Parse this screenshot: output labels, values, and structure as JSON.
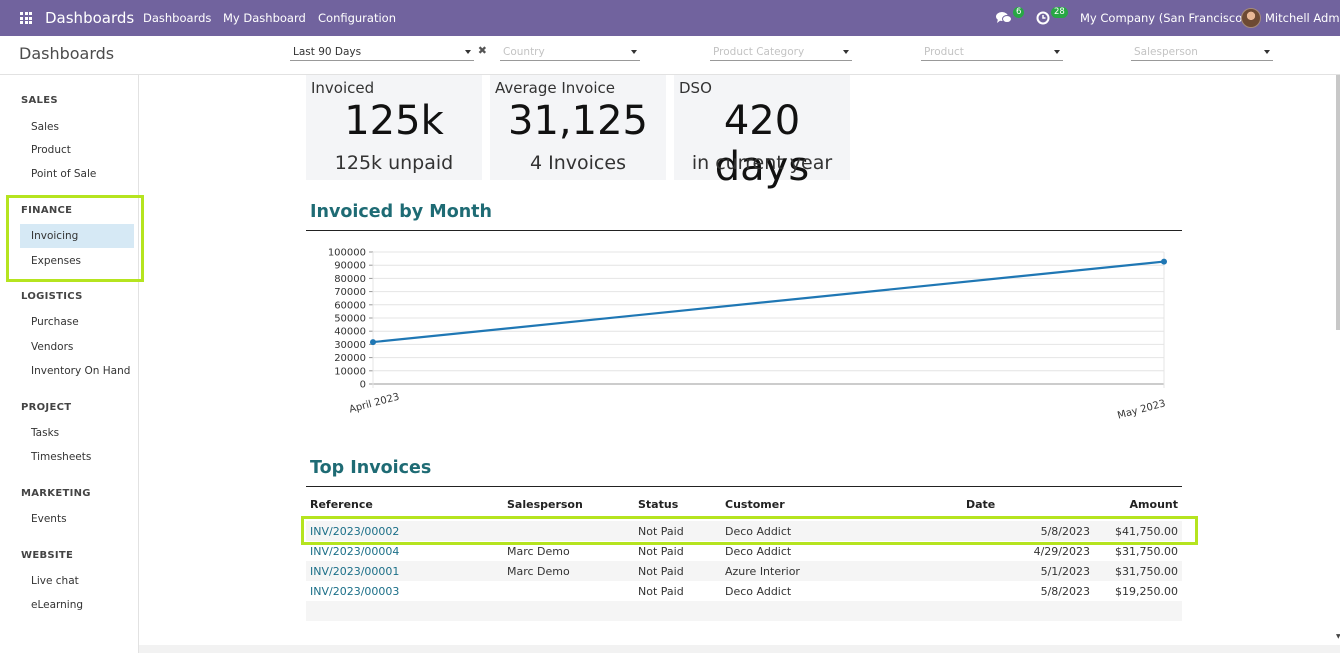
{
  "navbar": {
    "app_name": "Dashboards",
    "menu": [
      "Dashboards",
      "My Dashboard",
      "Configuration"
    ],
    "messages_count": "6",
    "activities_count": "28",
    "company": "My Company (San Francisco)",
    "user": "Mitchell Admin",
    "color": "#71639e"
  },
  "control": {
    "title": "Dashboards",
    "period": "Last 90 Days",
    "country_placeholder": "Country",
    "category_placeholder": "Product Category",
    "product_placeholder": "Product",
    "salesperson_placeholder": "Salesperson"
  },
  "sidebar": {
    "sections": [
      {
        "title": "SALES",
        "items": [
          "Sales",
          "Product",
          "Point of Sale"
        ]
      },
      {
        "title": "FINANCE",
        "items": [
          "Invoicing",
          "Expenses"
        ]
      },
      {
        "title": "LOGISTICS",
        "items": [
          "Purchase",
          "Vendors",
          "Inventory On Hand"
        ]
      },
      {
        "title": "PROJECT",
        "items": [
          "Tasks",
          "Timesheets"
        ]
      },
      {
        "title": "MARKETING",
        "items": [
          "Events"
        ]
      },
      {
        "title": "WEBSITE",
        "items": [
          "Live chat",
          "eLearning"
        ]
      }
    ],
    "active_item": "Invoicing"
  },
  "kpis": [
    {
      "title": "Invoiced",
      "value": "125k",
      "sub": "125k unpaid"
    },
    {
      "title": "Average Invoice",
      "value": "31,125",
      "sub": "4 Invoices"
    },
    {
      "title": "DSO",
      "value": "420 days",
      "sub": "in current year"
    }
  ],
  "chart_section_title": "Invoiced by Month",
  "chart_data": {
    "type": "line",
    "title": "",
    "xlabel": "",
    "ylabel": "",
    "categories": [
      "April 2023",
      "May 2023"
    ],
    "series": [
      {
        "values": [
          31750,
          92750
        ]
      }
    ],
    "ylim": [
      0,
      100000
    ],
    "yticks": [
      "100000",
      "90000",
      "80000",
      "70000",
      "60000",
      "50000",
      "40000",
      "30000",
      "20000",
      "10000",
      "0"
    ],
    "grid": true,
    "color": "#1f77b4"
  },
  "top_invoices": {
    "title": "Top Invoices",
    "headers": [
      "Reference",
      "Salesperson",
      "Status",
      "Customer",
      "Date",
      "Amount"
    ],
    "rows": [
      {
        "reference": "INV/2023/00002",
        "salesperson": "",
        "status": "Not Paid",
        "customer": "Deco Addict",
        "date": "5/8/2023",
        "amount": "$41,750.00"
      },
      {
        "reference": "INV/2023/00004",
        "salesperson": "Marc Demo",
        "status": "Not Paid",
        "customer": "Deco Addict",
        "date": "4/29/2023",
        "amount": "$31,750.00"
      },
      {
        "reference": "INV/2023/00001",
        "salesperson": "Marc Demo",
        "status": "Not Paid",
        "customer": "Azure Interior",
        "date": "5/1/2023",
        "amount": "$31,750.00"
      },
      {
        "reference": "INV/2023/00003",
        "salesperson": "",
        "status": "Not Paid",
        "customer": "Deco Addict",
        "date": "5/8/2023",
        "amount": "$19,250.00"
      }
    ]
  },
  "highlight_color": "#b5e41f"
}
